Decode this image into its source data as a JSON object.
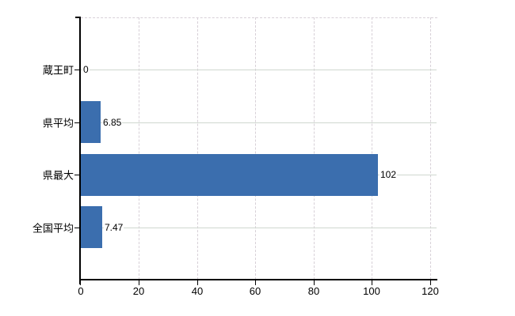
{
  "chart_data": {
    "type": "bar",
    "orientation": "horizontal",
    "title": "",
    "xlabel": "",
    "ylabel": "",
    "categories": [
      "蔵王町",
      "県平均",
      "県最大",
      "全国平均"
    ],
    "values": [
      0,
      6.85,
      102,
      7.47
    ],
    "value_labels": [
      "0",
      "6.85",
      "102",
      "7.47"
    ],
    "x_ticks": [
      0,
      20,
      40,
      60,
      80,
      100,
      120
    ],
    "x_tick_labels": [
      "0",
      "20",
      "40",
      "60",
      "80",
      "100",
      "120"
    ],
    "xlim": [
      0,
      122.5
    ],
    "grid": "on",
    "legend": "none",
    "colors": {
      "bar": "#3b6eae",
      "axis": "#000000",
      "text": "#000000",
      "h_grid": "#cfd7cf",
      "v_grid": "#d7d0d7",
      "background": "#ffffff"
    }
  }
}
